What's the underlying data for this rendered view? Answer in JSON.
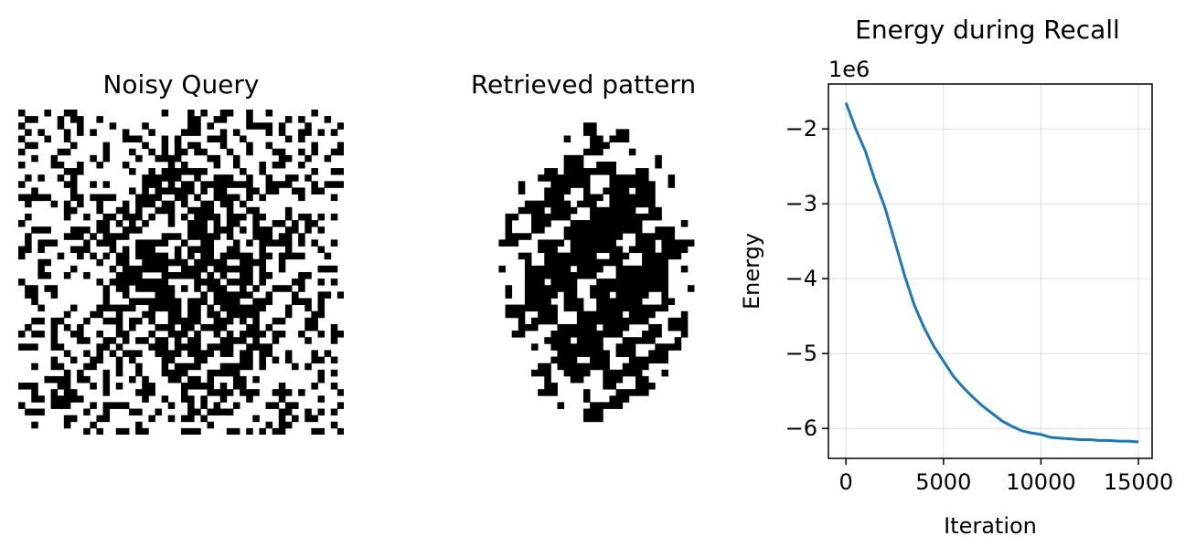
{
  "panels": {
    "noisy": {
      "title": "Noisy Query",
      "grid_size": [
        50,
        50
      ],
      "on_color": "#000000",
      "off_color": "#ffffff",
      "seed": 7,
      "noise_density": 0.28
    },
    "retrieved": {
      "title": "Retrieved pattern",
      "grid_size": [
        50,
        50
      ],
      "on_color": "#000000",
      "off_color": "#ffffff"
    }
  },
  "chart_data": {
    "type": "line",
    "title": "Energy during Recall",
    "xlabel": "Iteration",
    "ylabel": "Energy",
    "offset_text": "1e6",
    "xlim": [
      -900,
      15700
    ],
    "ylim": [
      -6.4,
      -1.4
    ],
    "xticks": [
      0,
      5000,
      10000,
      15000
    ],
    "xtick_labels": [
      "0",
      "5000",
      "10000",
      "15000"
    ],
    "yticks": [
      -2,
      -3,
      -4,
      -5,
      -6
    ],
    "ytick_labels": [
      "−2",
      "−3",
      "−4",
      "−5",
      "−6"
    ],
    "grid": true,
    "line_color": "#1f77b4",
    "series": [
      {
        "x": [
          0,
          500,
          1000,
          1500,
          2000,
          2500,
          3000,
          3500,
          4000,
          4500,
          5000,
          5500,
          6000,
          6500,
          7000,
          7500,
          8000,
          8500,
          9000,
          9500,
          10000,
          10500,
          11000,
          11500,
          12000,
          12500,
          13000,
          13500,
          14000,
          14500,
          15000
        ],
        "y": [
          -1.65,
          -2.0,
          -2.3,
          -2.7,
          -3.05,
          -3.5,
          -3.95,
          -4.35,
          -4.65,
          -4.9,
          -5.1,
          -5.3,
          -5.45,
          -5.58,
          -5.7,
          -5.8,
          -5.9,
          -5.97,
          -6.03,
          -6.06,
          -6.08,
          -6.12,
          -6.13,
          -6.14,
          -6.15,
          -6.15,
          -6.16,
          -6.16,
          -6.17,
          -6.17,
          -6.18
        ]
      }
    ]
  }
}
